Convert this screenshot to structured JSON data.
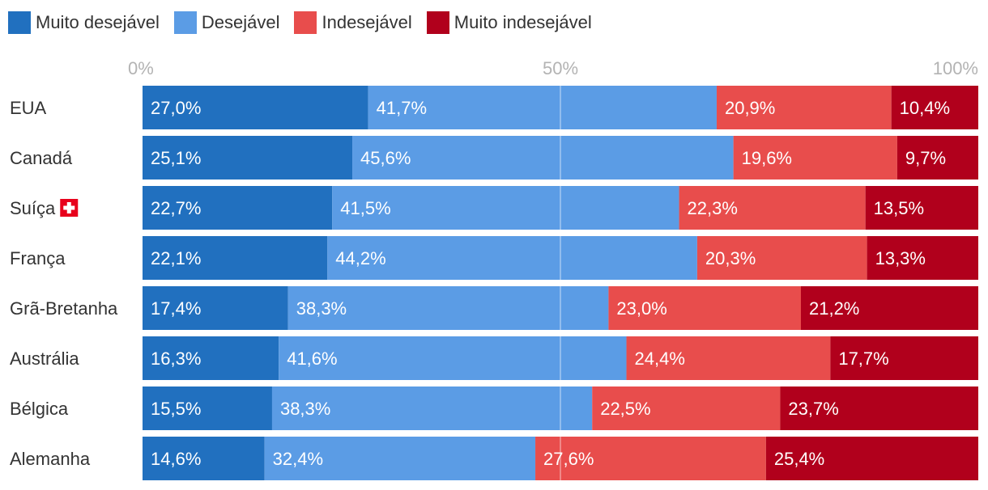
{
  "chart_data": {
    "type": "bar",
    "orientation": "horizontal",
    "stacked": true,
    "stack_mode": "percent",
    "title": "",
    "xlim": [
      0,
      100
    ],
    "x_ticks": [
      "0%",
      "50%",
      "100%"
    ],
    "x_tick_values": [
      0,
      50,
      100
    ],
    "categories": [
      "EUA",
      "Canadá",
      "Suíça",
      "França",
      "Grã-Bretanha",
      "Austrália",
      "Bélgica",
      "Alemanha"
    ],
    "category_flags": [
      null,
      null,
      "swiss-flag-icon",
      null,
      null,
      null,
      null,
      null
    ],
    "series": [
      {
        "name": "Muito desejável",
        "color": "#2170bf",
        "values": [
          27.0,
          25.1,
          22.7,
          22.1,
          17.4,
          16.3,
          15.5,
          14.6
        ],
        "labels": [
          "27,0%",
          "25,1%",
          "22,7%",
          "22,1%",
          "17,4%",
          "16,3%",
          "15,5%",
          "14,6%"
        ]
      },
      {
        "name": "Desejável",
        "color": "#5b9ce5",
        "values": [
          41.7,
          45.6,
          41.5,
          44.2,
          38.3,
          41.6,
          38.3,
          32.4
        ],
        "labels": [
          "41,7%",
          "45,6%",
          "41,5%",
          "44,2%",
          "38,3%",
          "41,6%",
          "38,3%",
          "32,4%"
        ]
      },
      {
        "name": "Indesejável",
        "color": "#e84d4c",
        "values": [
          20.9,
          19.6,
          22.3,
          20.3,
          23.0,
          24.4,
          22.5,
          27.6
        ],
        "labels": [
          "20,9%",
          "19,6%",
          "22,3%",
          "20,3%",
          "23,0%",
          "24,4%",
          "22,5%",
          "27,6%"
        ]
      },
      {
        "name": "Muito indesejável",
        "color": "#b1001c",
        "values": [
          10.4,
          9.7,
          13.5,
          13.3,
          21.2,
          17.7,
          23.7,
          25.4
        ],
        "labels": [
          "10,4%",
          "9,7%",
          "13,5%",
          "13,3%",
          "21,2%",
          "17,7%",
          "23,7%",
          "25,4%"
        ]
      }
    ],
    "gridline_at": 50,
    "legend_position": "top-left"
  }
}
